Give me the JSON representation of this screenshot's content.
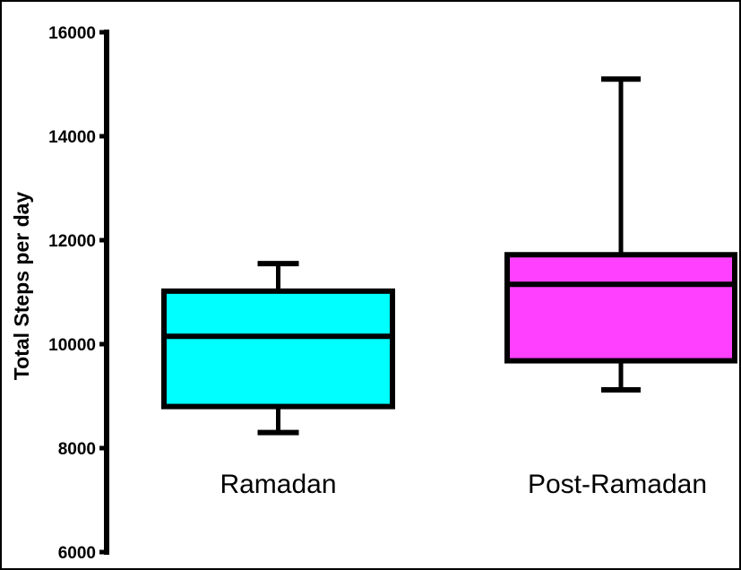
{
  "chart_data": {
    "type": "box",
    "ylabel": "Total Steps per day",
    "ylim": [
      6000,
      16000
    ],
    "yticks": [
      6000,
      8000,
      10000,
      12000,
      14000,
      16000
    ],
    "ytick_labels": [
      "6000",
      "8000",
      "10000",
      "12000",
      "14000",
      "16000"
    ],
    "categories": [
      "Ramadan",
      "Post-Ramadan"
    ],
    "series": [
      {
        "category": "Ramadan",
        "min": 8300,
        "q1": 8800,
        "median": 10150,
        "q3": 11020,
        "max": 11550,
        "color": "#00ffff"
      },
      {
        "category": "Post-Ramadan",
        "min": 9120,
        "q1": 9680,
        "median": 11150,
        "q3": 11720,
        "max": 15100,
        "color": "#ff40ff"
      }
    ],
    "grid": false,
    "legend": "none"
  }
}
